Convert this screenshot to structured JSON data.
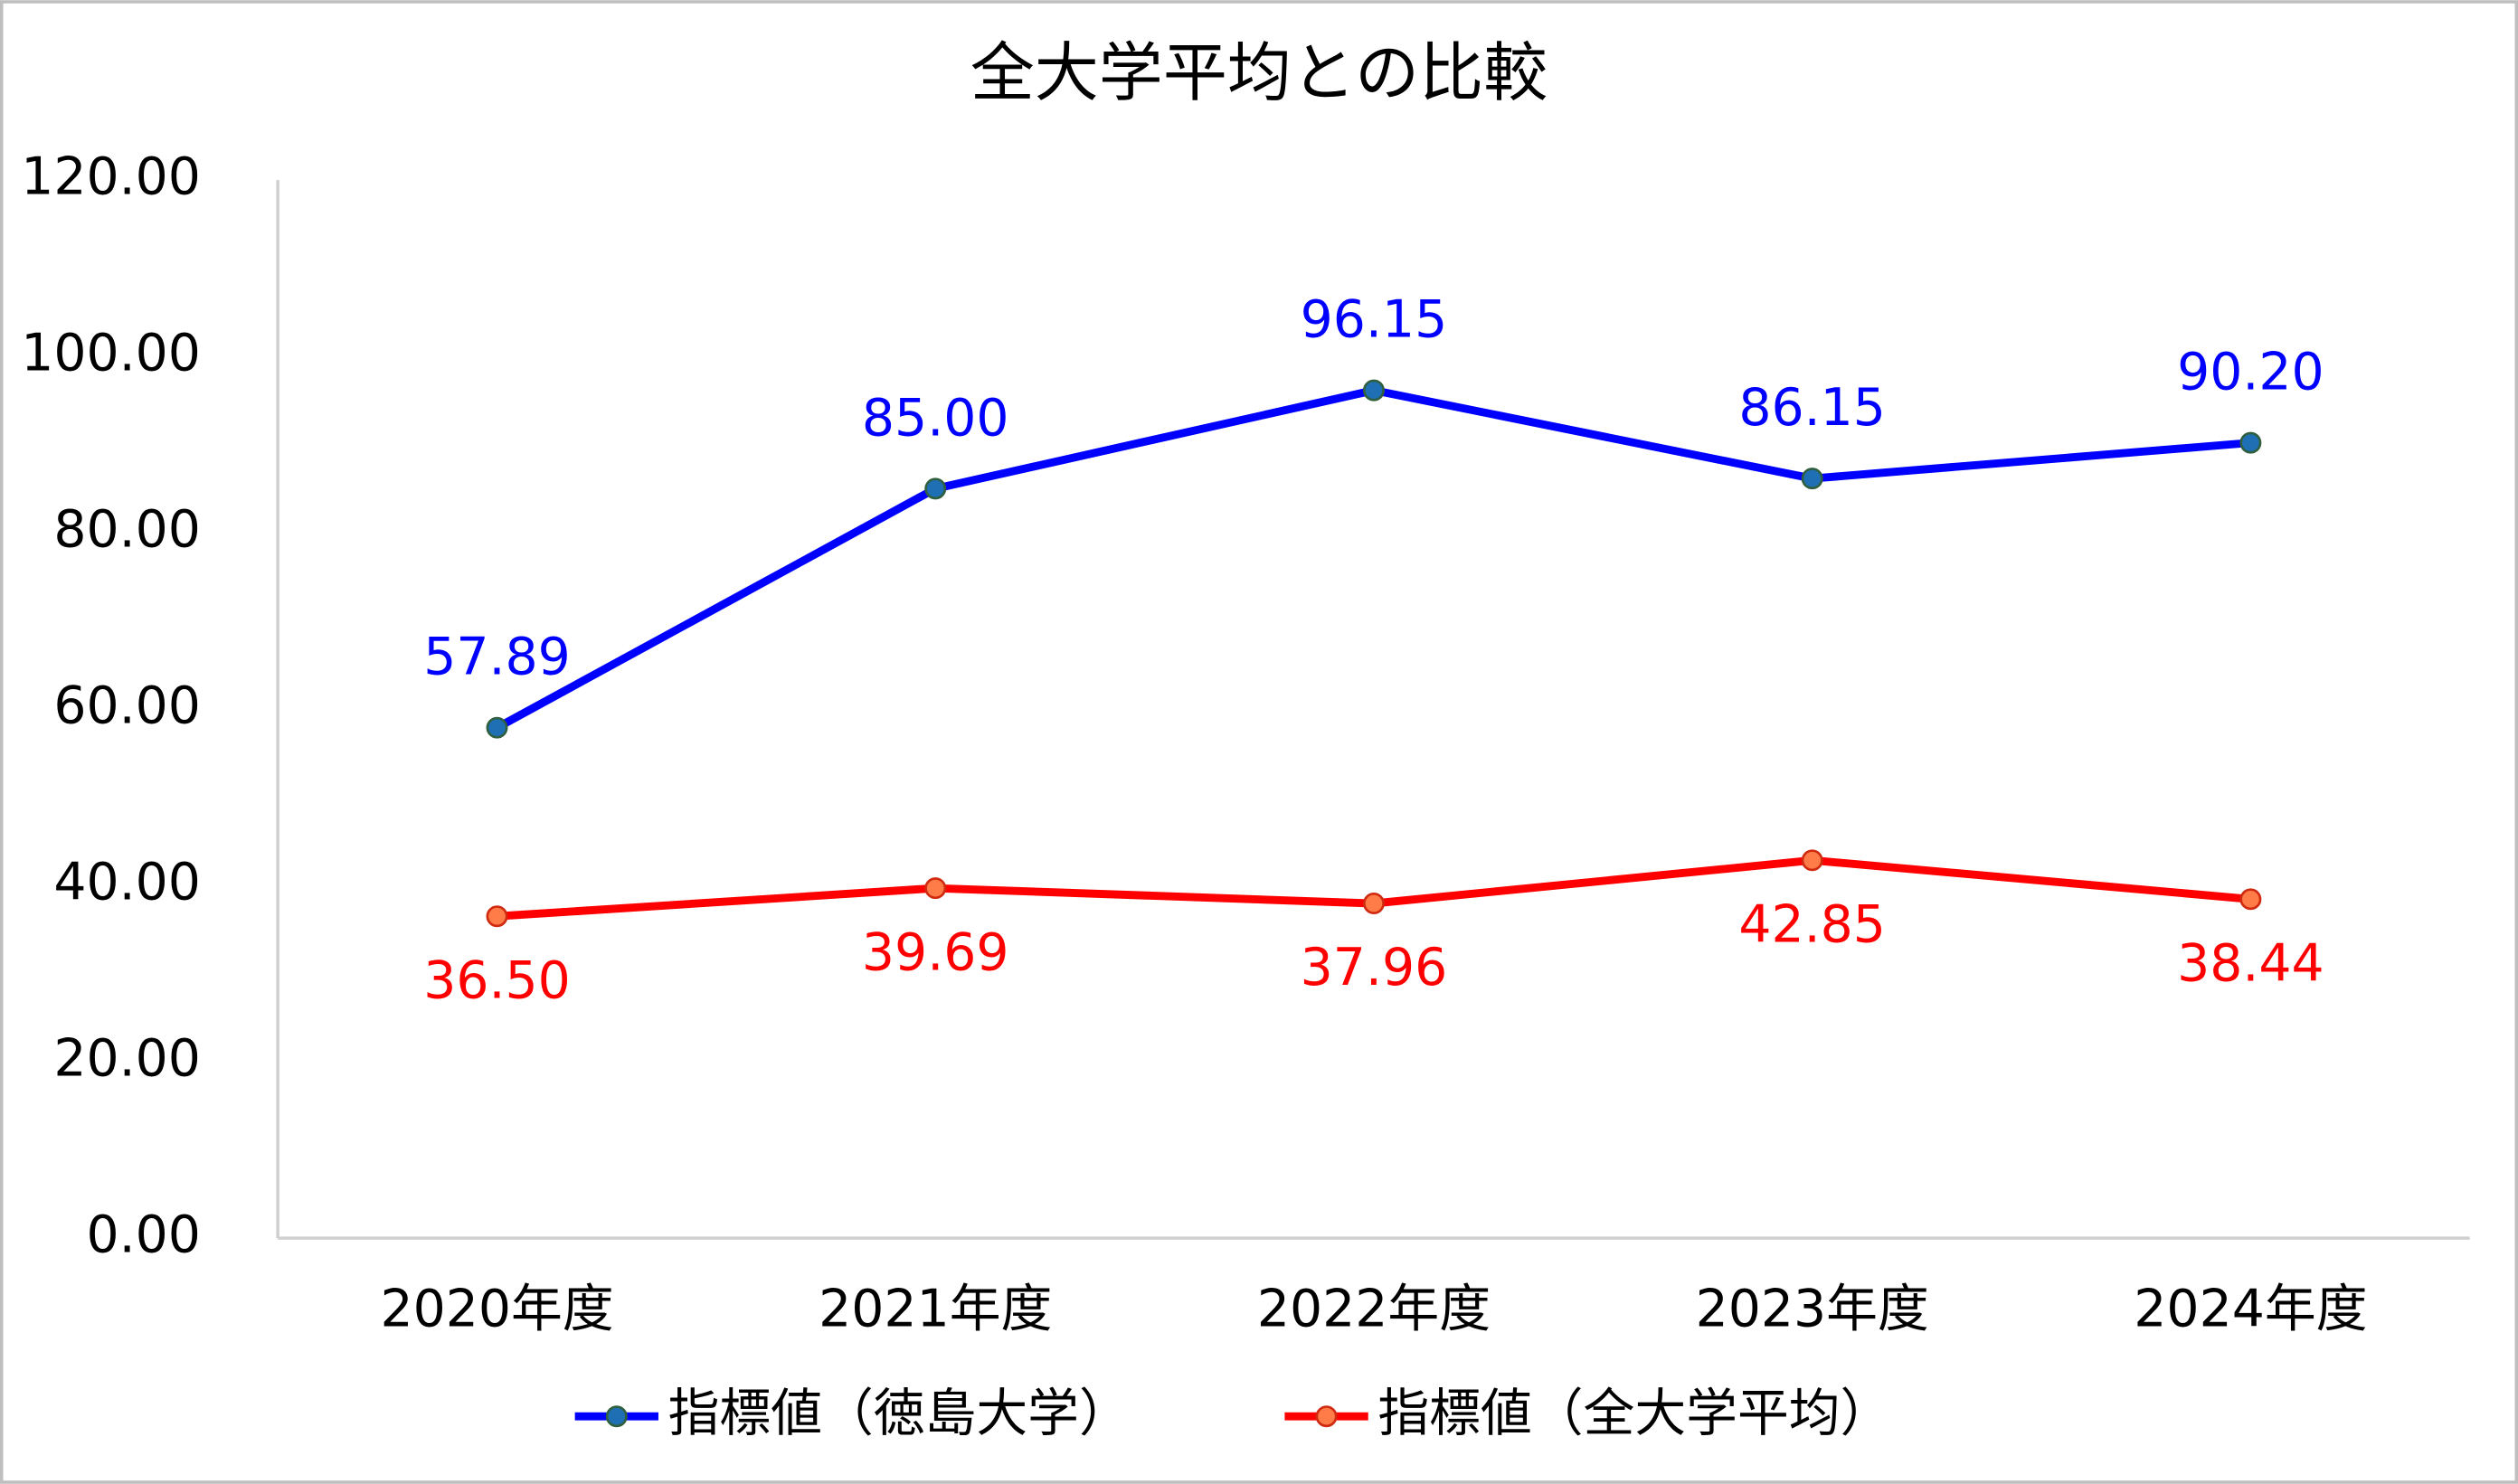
{
  "chart_data": {
    "type": "line",
    "title": "全大学平均との比較",
    "categories": [
      "2020年度",
      "2021年度",
      "2022年度",
      "2023年度",
      "2024年度"
    ],
    "series": [
      {
        "name": "指標値（徳島大学）",
        "color": "#0000ff",
        "marker_color": "#1f6fb4",
        "marker_edge": "#2f5f3f",
        "values": [
          57.89,
          85.0,
          96.15,
          86.15,
          90.2
        ],
        "value_labels": [
          "57.89",
          "85.00",
          "96.15",
          "86.15",
          "90.20"
        ],
        "label_position": "above"
      },
      {
        "name": "指標値（全大学平均）",
        "color": "#ff0000",
        "marker_color": "#ff7b47",
        "marker_edge": "#d02a10",
        "values": [
          36.5,
          39.69,
          37.96,
          42.85,
          38.44
        ],
        "value_labels": [
          "36.50",
          "39.69",
          "37.96",
          "42.85",
          "38.44"
        ],
        "label_position": "below"
      }
    ],
    "ylim": [
      0,
      120
    ],
    "yticks": [
      {
        "value": 0,
        "label": "0.00"
      },
      {
        "value": 20,
        "label": "20.00"
      },
      {
        "value": 40,
        "label": "40.00"
      },
      {
        "value": 60,
        "label": "60.00"
      },
      {
        "value": 80,
        "label": "80.00"
      },
      {
        "value": 100,
        "label": "100.00"
      },
      {
        "value": 120,
        "label": "120.00"
      }
    ],
    "grid": false,
    "legend": "bottom"
  }
}
